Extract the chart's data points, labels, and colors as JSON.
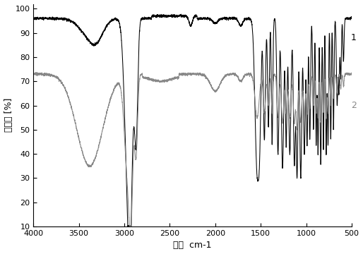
{
  "title": "",
  "xlabel": "波数  cm-1",
  "ylabel": "透过率 [%]",
  "xlim": [
    4000,
    500
  ],
  "ylim": [
    10,
    102
  ],
  "yticks": [
    10,
    20,
    30,
    40,
    50,
    60,
    70,
    80,
    90,
    100
  ],
  "xticks": [
    4000,
    3500,
    3000,
    2500,
    2000,
    1500,
    1000,
    500
  ],
  "curve1_color": "#000000",
  "curve2_color": "#888888",
  "label1": "1",
  "label2": "2",
  "background_color": "#ffffff",
  "curve1_baseline": 96.0,
  "curve2_baseline": 73.0
}
